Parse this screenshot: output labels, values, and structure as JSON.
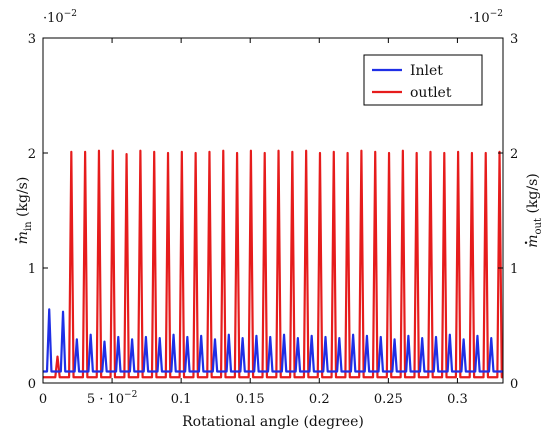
{
  "chart_data": {
    "type": "line",
    "xlabel": "Rotational angle (degree)",
    "ylabel_left": {
      "main": "m",
      "sub": "in",
      "unit": "(kg/s)"
    },
    "ylabel_right": {
      "main": "m",
      "sub": "out",
      "unit": "(kg/s)"
    },
    "axis_multiplier_left": "·10",
    "axis_multiplier_right": "·10",
    "multiplier_exponent": "−2",
    "xlim": [
      0,
      0.333
    ],
    "ylim": [
      0,
      3
    ],
    "x_ticks": [
      {
        "value": 0,
        "label": "0"
      },
      {
        "value": 0.05,
        "label": "5 · 10",
        "exp": "−2"
      },
      {
        "value": 0.1,
        "label": "0.1"
      },
      {
        "value": 0.15,
        "label": "0.15"
      },
      {
        "value": 0.2,
        "label": "0.2"
      },
      {
        "value": 0.25,
        "label": "0.25"
      },
      {
        "value": 0.3,
        "label": "0.3"
      }
    ],
    "y_ticks": [
      {
        "value": 0,
        "label": "0"
      },
      {
        "value": 1,
        "label": "1"
      },
      {
        "value": 2,
        "label": "2"
      },
      {
        "value": 3,
        "label": "3"
      }
    ],
    "legend": {
      "position": "top-right"
    },
    "series": [
      {
        "name": "Inlet",
        "color": "#1f2fe6",
        "baseline": 0.1,
        "peak_x": [
          0.0045,
          0.0145,
          0.0245,
          0.0345,
          0.0445,
          0.0545,
          0.0645,
          0.0745,
          0.0845,
          0.0945,
          0.1045,
          0.1145,
          0.1245,
          0.1345,
          0.1445,
          0.1545,
          0.1645,
          0.1745,
          0.1845,
          0.1945,
          0.2045,
          0.2145,
          0.2245,
          0.2345,
          0.2445,
          0.2545,
          0.2645,
          0.2745,
          0.2845,
          0.2945,
          0.3045,
          0.3145,
          0.3245
        ],
        "peak_y": [
          0.64,
          0.62,
          0.38,
          0.42,
          0.36,
          0.4,
          0.38,
          0.4,
          0.39,
          0.42,
          0.4,
          0.41,
          0.38,
          0.42,
          0.39,
          0.41,
          0.4,
          0.42,
          0.39,
          0.41,
          0.4,
          0.39,
          0.42,
          0.41,
          0.4,
          0.38,
          0.41,
          0.39,
          0.4,
          0.42,
          0.38,
          0.41,
          0.39
        ]
      },
      {
        "name": "outlet",
        "color": "#e61c1c",
        "baseline": 0.05,
        "peak_x": [
          0.0105,
          0.0205,
          0.0305,
          0.0405,
          0.0505,
          0.0605,
          0.0705,
          0.0805,
          0.0905,
          0.1005,
          0.1105,
          0.1205,
          0.1305,
          0.1405,
          0.1505,
          0.1605,
          0.1705,
          0.1805,
          0.1905,
          0.2005,
          0.2105,
          0.2205,
          0.2305,
          0.2405,
          0.2505,
          0.2605,
          0.2705,
          0.2805,
          0.2905,
          0.3005,
          0.3105,
          0.3205,
          0.3305
        ],
        "peak_y": [
          0.23,
          2.01,
          2.01,
          2.02,
          2.02,
          1.99,
          2.02,
          2.01,
          2.0,
          2.01,
          2.0,
          2.01,
          2.02,
          2.0,
          2.02,
          2.0,
          2.02,
          2.01,
          2.02,
          2.0,
          2.01,
          2.0,
          2.02,
          2.01,
          2.0,
          2.02,
          2.0,
          2.01,
          2.0,
          2.01,
          2.0,
          2.0,
          2.01
        ]
      }
    ]
  }
}
